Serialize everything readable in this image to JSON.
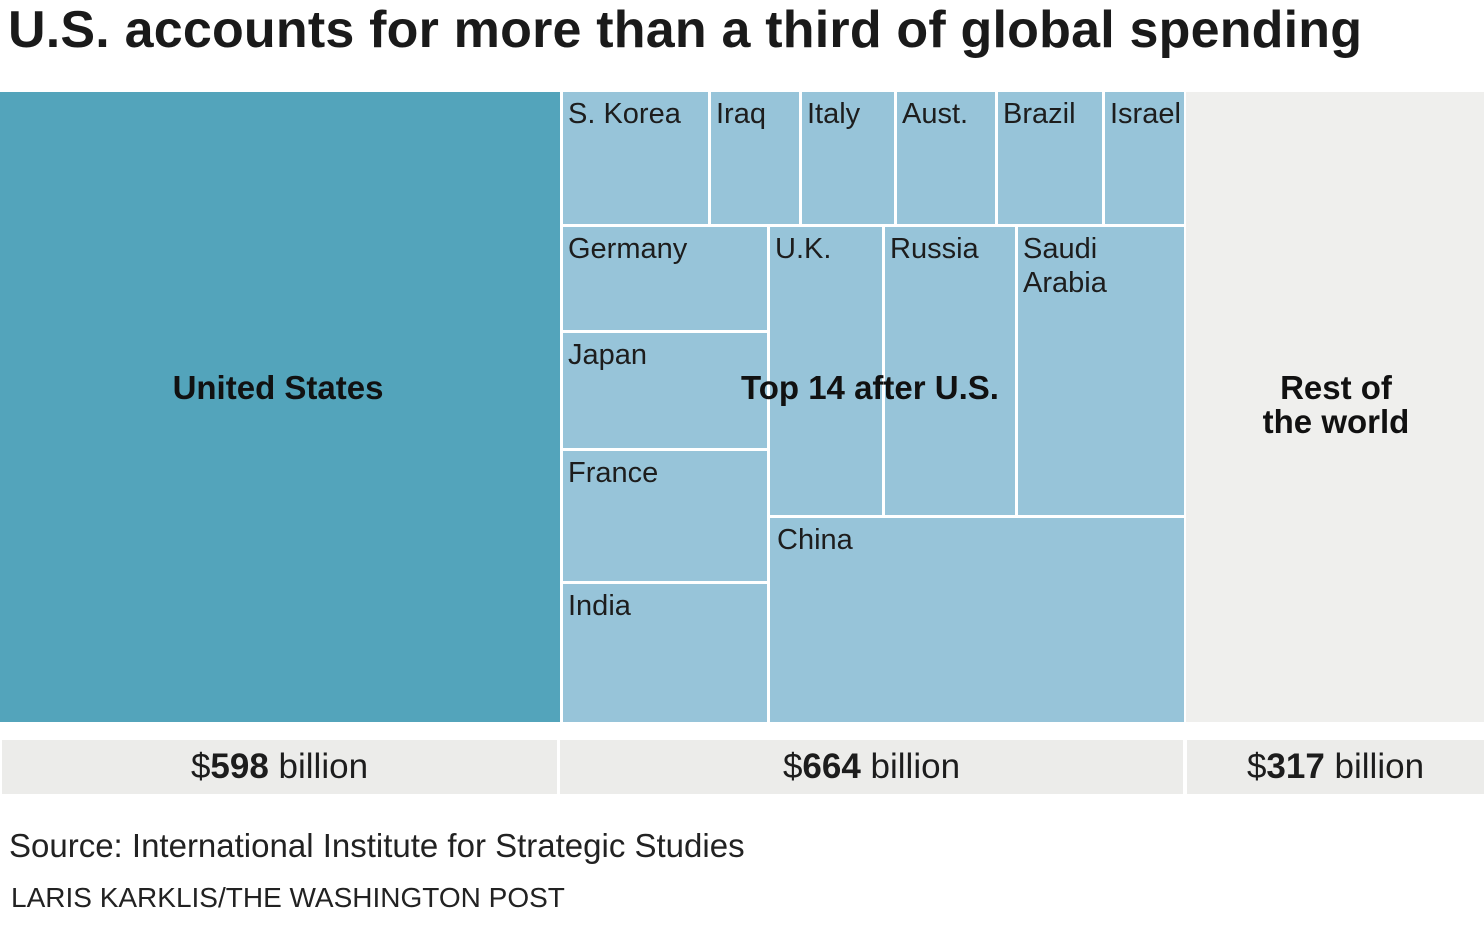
{
  "title": "U.S. accounts for more than a third of global spending",
  "chart_data": {
    "type": "treemap",
    "title": "U.S. accounts for more than a third of global spending",
    "groups": [
      {
        "name": "United States",
        "value_billion": 598,
        "total_label": {
          "prefix": "$",
          "number": "598",
          "suffix": " billion"
        }
      },
      {
        "name": "Top 14 after U.S.",
        "value_billion": 664,
        "total_label": {
          "prefix": "$",
          "number": "664",
          "suffix": " billion"
        },
        "countries": [
          "S. Korea",
          "Iraq",
          "Italy",
          "Aust.",
          "Brazil",
          "Israel",
          "Germany",
          "U.K.",
          "Russia",
          "Saudi Arabia",
          "Japan",
          "France",
          "India",
          "China"
        ]
      },
      {
        "name": "Rest of the world",
        "value_billion": 317,
        "total_label": {
          "prefix": "$",
          "number": "317",
          "suffix": " billion"
        }
      }
    ],
    "labels": {
      "us": "United States",
      "top14": "Top 14 after U.S.",
      "rest_line1": "Rest of",
      "rest_line2": "the world",
      "skorea": "S. Korea",
      "iraq": "Iraq",
      "italy": "Italy",
      "aust": "Aust.",
      "brazil": "Brazil",
      "israel": "Israel",
      "germany": "Germany",
      "uk": "U.K.",
      "russia": "Russia",
      "saudi_line1": "Saudi",
      "saudi_line2": "Arabia",
      "japan": "Japan",
      "france": "France",
      "india": "India",
      "china": "China"
    },
    "colors": {
      "us": "#53a4bb",
      "countries": "#97c4d9",
      "rest": "#efefed"
    }
  },
  "source": "Source: International Institute for Strategic Studies",
  "credit": "LARIS KARKLIS/THE WASHINGTON POST"
}
